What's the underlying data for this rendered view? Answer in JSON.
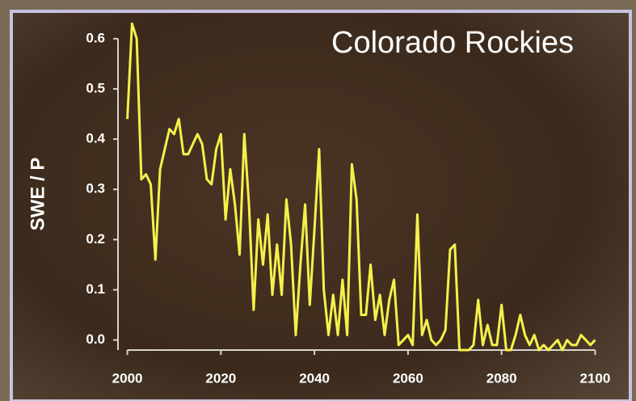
{
  "chart_data": {
    "type": "line",
    "title": "Colorado Rockies",
    "y_label": "SWE / P",
    "x": [
      2000,
      2001,
      2002,
      2003,
      2004,
      2005,
      2006,
      2007,
      2008,
      2009,
      2010,
      2011,
      2012,
      2013,
      2014,
      2015,
      2016,
      2017,
      2018,
      2019,
      2020,
      2021,
      2022,
      2023,
      2024,
      2025,
      2026,
      2027,
      2028,
      2029,
      2030,
      2031,
      2032,
      2033,
      2034,
      2035,
      2036,
      2037,
      2038,
      2039,
      2040,
      2041,
      2042,
      2043,
      2044,
      2045,
      2046,
      2047,
      2048,
      2049,
      2050,
      2051,
      2052,
      2053,
      2054,
      2055,
      2056,
      2057,
      2058,
      2059,
      2060,
      2061,
      2062,
      2063,
      2064,
      2065,
      2066,
      2067,
      2068,
      2069,
      2070,
      2071,
      2072,
      2073,
      2074,
      2075,
      2076,
      2077,
      2078,
      2079,
      2080,
      2081,
      2082,
      2083,
      2084,
      2085,
      2086,
      2087,
      2088,
      2089,
      2090,
      2091,
      2092,
      2093,
      2094,
      2095,
      2096,
      2097,
      2098,
      2099,
      2100
    ],
    "series": [
      {
        "name": "SWE / P",
        "color": "#f5f04a",
        "values": [
          0.44,
          0.63,
          0.6,
          0.32,
          0.33,
          0.31,
          0.16,
          0.34,
          0.38,
          0.42,
          0.41,
          0.44,
          0.37,
          0.37,
          0.39,
          0.41,
          0.39,
          0.32,
          0.31,
          0.38,
          0.41,
          0.24,
          0.34,
          0.27,
          0.17,
          0.41,
          0.27,
          0.06,
          0.24,
          0.15,
          0.25,
          0.09,
          0.19,
          0.09,
          0.28,
          0.19,
          0.01,
          0.15,
          0.27,
          0.07,
          0.22,
          0.38,
          0.1,
          0.01,
          0.09,
          0.01,
          0.12,
          0.01,
          0.35,
          0.28,
          0.05,
          0.05,
          0.15,
          0.04,
          0.09,
          0.01,
          0.08,
          0.12,
          -0.01,
          0.0,
          0.01,
          -0.01,
          0.25,
          0.01,
          0.04,
          0.0,
          -0.01,
          0.0,
          0.02,
          0.18,
          0.19,
          -0.02,
          -0.02,
          -0.02,
          -0.01,
          0.08,
          -0.01,
          0.03,
          -0.01,
          -0.01,
          0.07,
          -0.02,
          -0.02,
          0.01,
          0.05,
          0.01,
          -0.01,
          0.01,
          -0.02,
          -0.01,
          -0.02,
          -0.01,
          0.0,
          -0.02,
          0.0,
          -0.01,
          -0.01,
          0.01,
          0.0,
          -0.01,
          0.0
        ]
      }
    ],
    "xlim": [
      1998,
      2102
    ],
    "xticks": [
      2000,
      2020,
      2040,
      2060,
      2080,
      2100
    ],
    "ylim": [
      -0.02,
      0.64
    ],
    "yticks": [
      {
        "value": 0,
        "label": "0.0"
      },
      0.1,
      0.2,
      0.3,
      0.4,
      0.5,
      0.6
    ]
  }
}
